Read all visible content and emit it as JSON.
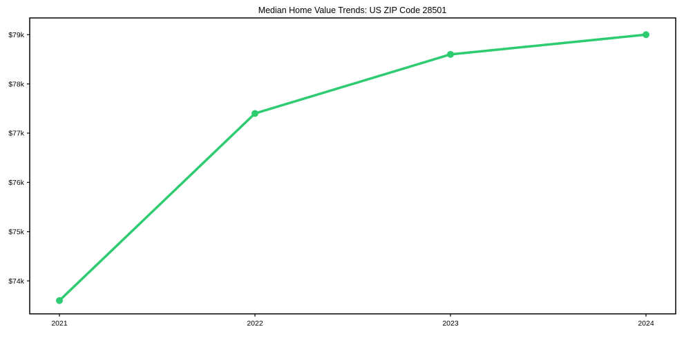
{
  "chart_data": {
    "type": "line",
    "title": "Median Home Value Trends: US ZIP Code 28501",
    "xlabel": "",
    "ylabel": "",
    "x": [
      2021,
      2022,
      2023,
      2024
    ],
    "xtick_labels": [
      "2021",
      "2022",
      "2023",
      "2024"
    ],
    "values_usd": [
      73600,
      77400,
      78600,
      79000
    ],
    "yticks_usd": [
      74000,
      75000,
      76000,
      77000,
      78000,
      79000
    ],
    "ytick_labels": [
      "$74k",
      "$75k",
      "$76k",
      "$77k",
      "$78k",
      "$79k"
    ],
    "ylim_usd": [
      73330,
      79340
    ],
    "grid": false,
    "legend": "none",
    "line_color": "#2ecc71",
    "marker": "circle",
    "background_color": "#ffffff",
    "spine_color": "#000000"
  }
}
